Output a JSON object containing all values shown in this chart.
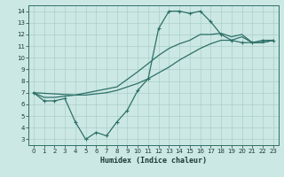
{
  "xlabel": "Humidex (Indice chaleur)",
  "bg_color": "#cce8e4",
  "grid_color": "#aacfca",
  "line_color": "#2d7068",
  "xlim": [
    -0.5,
    23.5
  ],
  "ylim": [
    2.5,
    14.5
  ],
  "xticks": [
    0,
    1,
    2,
    3,
    4,
    5,
    6,
    7,
    8,
    9,
    10,
    11,
    12,
    13,
    14,
    15,
    16,
    17,
    18,
    19,
    20,
    21,
    22,
    23
  ],
  "yticks": [
    3,
    4,
    5,
    6,
    7,
    8,
    9,
    10,
    11,
    12,
    13,
    14
  ],
  "line1_x": [
    0,
    1,
    2,
    3,
    4,
    5,
    6,
    7,
    8,
    9,
    10,
    11,
    12,
    13,
    14,
    15,
    16,
    17,
    18,
    19,
    20,
    21,
    22,
    23
  ],
  "line1_y": [
    7.0,
    6.3,
    6.3,
    6.5,
    4.5,
    3.0,
    3.6,
    3.3,
    4.5,
    5.5,
    7.2,
    8.2,
    12.5,
    14.0,
    14.0,
    13.8,
    14.0,
    13.1,
    12.0,
    11.5,
    11.3,
    11.3,
    11.5,
    11.5
  ],
  "line2_x": [
    0,
    1,
    2,
    3,
    4,
    5,
    6,
    7,
    8,
    9,
    10,
    11,
    12,
    13,
    14,
    15,
    16,
    17,
    18,
    19,
    20,
    21,
    22,
    23
  ],
  "line2_y": [
    7.0,
    6.6,
    6.6,
    6.7,
    6.8,
    6.8,
    6.9,
    7.0,
    7.2,
    7.5,
    7.8,
    8.2,
    8.7,
    9.2,
    9.8,
    10.3,
    10.8,
    11.2,
    11.5,
    11.5,
    11.8,
    11.3,
    11.3,
    11.5
  ],
  "line3_x": [
    0,
    4,
    8,
    10,
    12,
    13,
    14,
    15,
    16,
    17,
    18,
    19,
    20,
    21,
    22,
    23
  ],
  "line3_y": [
    7.0,
    6.8,
    7.5,
    8.8,
    10.2,
    10.8,
    11.2,
    11.5,
    12.0,
    12.0,
    12.1,
    11.8,
    12.0,
    11.3,
    11.3,
    11.5
  ],
  "xlabel_fontsize": 6,
  "tick_fontsize": 5
}
